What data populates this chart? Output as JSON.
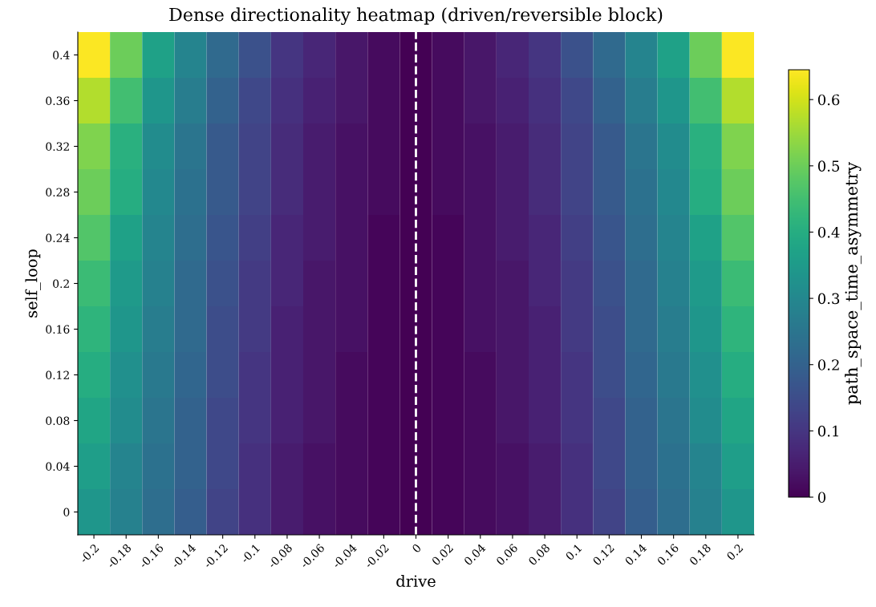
{
  "chart_data": {
    "type": "heatmap",
    "title": "Dense directionality heatmap (driven/reversible block)",
    "xlabel": "drive",
    "ylabel": "self_loop",
    "clabel": "path_space_time_asymmetry",
    "categories": [
      "-0.2",
      "-0.18",
      "-0.16",
      "-0.14",
      "-0.12",
      "-0.1",
      "-0.08",
      "-0.06",
      "-0.04",
      "-0.02",
      "0",
      "0.02",
      "0.04",
      "0.06",
      "0.08",
      "0.1",
      "0.12",
      "0.14",
      "0.16",
      "0.18",
      "0.2"
    ],
    "y_categories": [
      "0.4",
      "0.36",
      "0.32",
      "0.28",
      "0.24",
      "0.2",
      "0.16",
      "0.12",
      "0.08",
      "0.04",
      "0"
    ],
    "cells": [
      [
        0.64,
        0.5,
        0.37,
        0.29,
        0.22,
        0.16,
        0.1,
        0.07,
        0.04,
        0.02,
        0,
        0.02,
        0.04,
        0.07,
        0.1,
        0.16,
        0.22,
        0.29,
        0.37,
        0.5,
        0.64
      ],
      [
        0.57,
        0.45,
        0.34,
        0.27,
        0.2,
        0.14,
        0.09,
        0.06,
        0.04,
        0.02,
        0,
        0.02,
        0.04,
        0.06,
        0.09,
        0.14,
        0.2,
        0.27,
        0.34,
        0.45,
        0.57
      ],
      [
        0.52,
        0.41,
        0.31,
        0.25,
        0.18,
        0.13,
        0.08,
        0.05,
        0.03,
        0.02,
        0,
        0.02,
        0.03,
        0.05,
        0.08,
        0.13,
        0.18,
        0.25,
        0.31,
        0.41,
        0.52
      ],
      [
        0.5,
        0.4,
        0.3,
        0.24,
        0.18,
        0.13,
        0.08,
        0.05,
        0.03,
        0.02,
        0,
        0.02,
        0.03,
        0.05,
        0.08,
        0.13,
        0.18,
        0.24,
        0.3,
        0.4,
        0.5
      ],
      [
        0.47,
        0.37,
        0.29,
        0.23,
        0.17,
        0.12,
        0.07,
        0.05,
        0.03,
        0.01,
        0,
        0.01,
        0.03,
        0.05,
        0.07,
        0.12,
        0.17,
        0.23,
        0.29,
        0.37,
        0.47
      ],
      [
        0.44,
        0.35,
        0.28,
        0.22,
        0.16,
        0.11,
        0.07,
        0.04,
        0.03,
        0.01,
        0,
        0.01,
        0.03,
        0.04,
        0.07,
        0.11,
        0.16,
        0.22,
        0.28,
        0.35,
        0.44
      ],
      [
        0.42,
        0.34,
        0.27,
        0.22,
        0.15,
        0.11,
        0.06,
        0.04,
        0.03,
        0.01,
        0,
        0.01,
        0.03,
        0.04,
        0.06,
        0.11,
        0.15,
        0.22,
        0.27,
        0.34,
        0.42
      ],
      [
        0.4,
        0.32,
        0.26,
        0.21,
        0.15,
        0.1,
        0.06,
        0.04,
        0.02,
        0.01,
        0,
        0.01,
        0.02,
        0.04,
        0.06,
        0.1,
        0.15,
        0.21,
        0.26,
        0.32,
        0.4
      ],
      [
        0.38,
        0.31,
        0.25,
        0.2,
        0.14,
        0.1,
        0.06,
        0.04,
        0.02,
        0.01,
        0,
        0.01,
        0.02,
        0.04,
        0.06,
        0.1,
        0.14,
        0.2,
        0.25,
        0.31,
        0.38
      ],
      [
        0.36,
        0.29,
        0.24,
        0.2,
        0.14,
        0.09,
        0.05,
        0.03,
        0.02,
        0.01,
        0,
        0.01,
        0.02,
        0.03,
        0.05,
        0.09,
        0.14,
        0.2,
        0.24,
        0.29,
        0.36
      ],
      [
        0.34,
        0.28,
        0.23,
        0.19,
        0.13,
        0.09,
        0.05,
        0.03,
        0.02,
        0.01,
        0,
        0.01,
        0.02,
        0.03,
        0.05,
        0.09,
        0.13,
        0.19,
        0.23,
        0.28,
        0.34
      ]
    ],
    "clim": [
      0,
      0.645
    ],
    "cticks": [
      0,
      0.1,
      0.2,
      0.3,
      0.4,
      0.5,
      0.6
    ],
    "ref_lines": [
      {
        "axis": "x",
        "value": "0",
        "color": "#ffffff",
        "line_style": "dashed"
      }
    ],
    "grid": false
  }
}
